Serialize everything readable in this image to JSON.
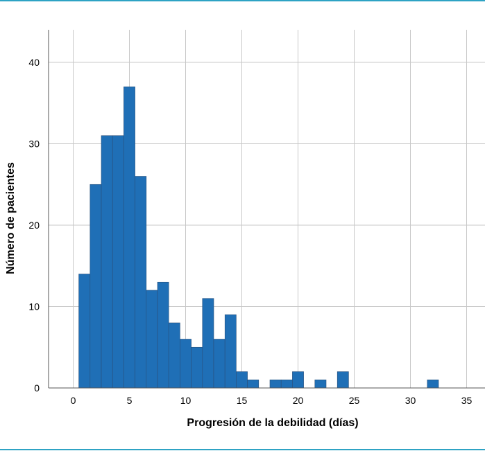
{
  "chart_data": {
    "type": "bar",
    "title": "",
    "xlabel": "Progresión de la debilidad (días)",
    "ylabel": "Número de pacientes",
    "xlim": [
      -2,
      36
    ],
    "ylim": [
      0,
      44
    ],
    "xticks": [
      0,
      5,
      10,
      15,
      20,
      25,
      30,
      35
    ],
    "yticks": [
      0,
      10,
      20,
      30,
      40
    ],
    "bin_width": 1,
    "grid": true,
    "bins": [
      {
        "x": 1,
        "value": 14
      },
      {
        "x": 2,
        "value": 25
      },
      {
        "x": 3,
        "value": 31
      },
      {
        "x": 4,
        "value": 31
      },
      {
        "x": 5,
        "value": 37
      },
      {
        "x": 6,
        "value": 26
      },
      {
        "x": 7,
        "value": 12
      },
      {
        "x": 8,
        "value": 13
      },
      {
        "x": 9,
        "value": 8
      },
      {
        "x": 10,
        "value": 6
      },
      {
        "x": 11,
        "value": 5
      },
      {
        "x": 12,
        "value": 11
      },
      {
        "x": 13,
        "value": 6
      },
      {
        "x": 14,
        "value": 9
      },
      {
        "x": 15,
        "value": 2
      },
      {
        "x": 16,
        "value": 1
      },
      {
        "x": 18,
        "value": 1
      },
      {
        "x": 19,
        "value": 1
      },
      {
        "x": 20,
        "value": 2
      },
      {
        "x": 22,
        "value": 1
      },
      {
        "x": 24,
        "value": 2
      },
      {
        "x": 32,
        "value": 1
      }
    ]
  },
  "colors": {
    "bar": "#1f6fb6",
    "bar_edge": "#2a4f7a",
    "grid": "#c8c8c8",
    "axis": "#555555",
    "rule": "#2ea3c4"
  }
}
